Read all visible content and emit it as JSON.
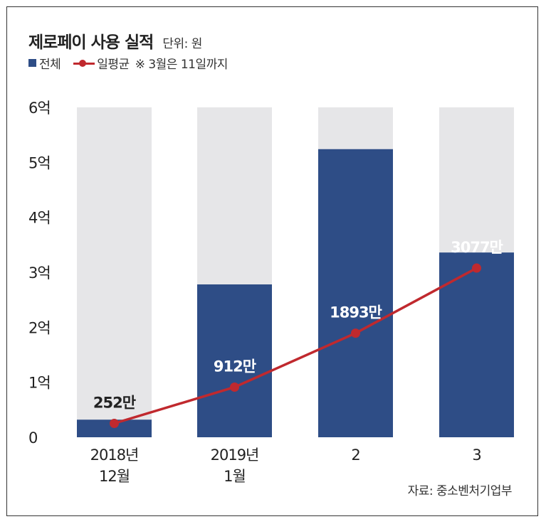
{
  "header": {
    "title": "제로페이 사용 실적",
    "unit": "단위: 원"
  },
  "legend": {
    "total_label": "전체",
    "avg_label": "일평균",
    "note": "※ 3월은 11일까지"
  },
  "source": "자료: 중소벤처기업부",
  "colors": {
    "bar": "#2e4d86",
    "bar_bg": "#e6e6e8",
    "line": "#c0292e"
  },
  "chart_data": {
    "type": "bar",
    "title": "제로페이 사용 실적",
    "categories": [
      [
        "2018년",
        "12월"
      ],
      [
        "2019년",
        "1월"
      ],
      [
        "2"
      ],
      [
        "3"
      ]
    ],
    "ylim": [
      0,
      600000000
    ],
    "yticks": [
      {
        "value": 0,
        "label": "0"
      },
      {
        "value": 100000000,
        "label": "1억"
      },
      {
        "value": 200000000,
        "label": "2억"
      },
      {
        "value": 300000000,
        "label": "3억"
      },
      {
        "value": 400000000,
        "label": "4억"
      },
      {
        "value": 500000000,
        "label": "5억"
      },
      {
        "value": 600000000,
        "label": "6억"
      }
    ],
    "series": [
      {
        "name": "전체",
        "type": "bar",
        "values": [
          32000000,
          278000000,
          524000000,
          336000000
        ]
      },
      {
        "name": "일평균",
        "type": "line",
        "values": [
          2520000,
          9120000,
          18930000,
          30770000
        ],
        "labels": [
          "252만",
          "912만",
          "1893만",
          "3077만"
        ]
      }
    ]
  }
}
